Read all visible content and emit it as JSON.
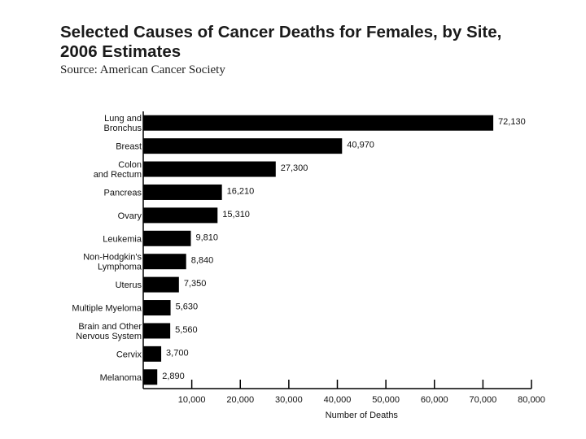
{
  "header": {
    "title_line1": "Selected Causes of Cancer Deaths for Females, by Site,",
    "title_line2": "2006 Estimates",
    "source": "Source: American Cancer Society"
  },
  "chart_data": {
    "type": "bar",
    "orientation": "horizontal",
    "title": "Selected Causes of Cancer Deaths for Females, by Site, 2006 Estimates",
    "subtitle": "Source: American Cancer Society",
    "categories": [
      [
        "Lung and",
        "Bronchus"
      ],
      [
        "Breast"
      ],
      [
        "Colon",
        "and Rectum"
      ],
      [
        "Pancreas"
      ],
      [
        "Ovary"
      ],
      [
        "Leukemia"
      ],
      [
        "Non-Hodgkin's",
        "Lymphoma"
      ],
      [
        "Uterus"
      ],
      [
        "Multiple Myeloma"
      ],
      [
        "Brain and Other",
        "Nervous System"
      ],
      [
        "Cervix"
      ],
      [
        "Melanoma"
      ]
    ],
    "values": [
      72130,
      40970,
      27300,
      16210,
      15310,
      9810,
      8840,
      7350,
      5630,
      5560,
      3700,
      2890
    ],
    "value_labels": [
      "72,130",
      "40,970",
      "27,300",
      "16,210",
      "15,310",
      "9,810",
      "8,840",
      "7,350",
      "5,630",
      "5,560",
      "3,700",
      "2,890"
    ],
    "xlabel": "Number of Deaths",
    "ylabel": "",
    "xlim": [
      0,
      80000
    ],
    "xticks": [
      10000,
      20000,
      30000,
      40000,
      50000,
      60000,
      70000,
      80000
    ],
    "xtick_labels": [
      "10,000",
      "20,000",
      "30,000",
      "40,000",
      "50,000",
      "60,000",
      "70,000",
      "80,000"
    ],
    "grid": false,
    "bar_color": "#000000"
  }
}
